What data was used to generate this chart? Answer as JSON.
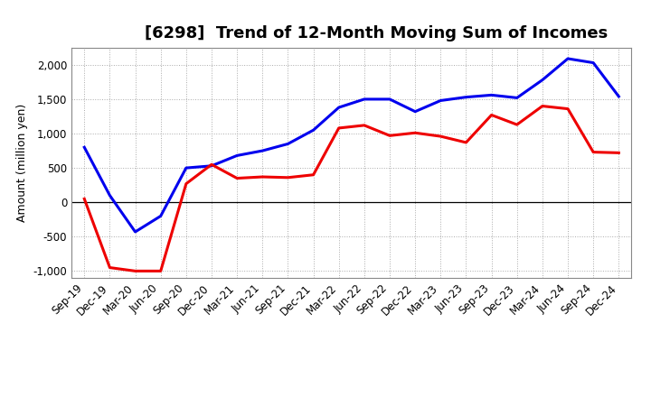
{
  "title": "[6298]  Trend of 12-Month Moving Sum of Incomes",
  "ylabel": "Amount (million yen)",
  "background_color": "#ffffff",
  "plot_background_color": "#ffffff",
  "x_labels": [
    "Sep-19",
    "Dec-19",
    "Mar-20",
    "Jun-20",
    "Sep-20",
    "Dec-20",
    "Mar-21",
    "Jun-21",
    "Sep-21",
    "Dec-21",
    "Mar-22",
    "Jun-22",
    "Sep-22",
    "Dec-22",
    "Mar-23",
    "Jun-23",
    "Sep-23",
    "Dec-23",
    "Mar-24",
    "Jun-24",
    "Sep-24",
    "Dec-24"
  ],
  "ordinary_income": [
    800,
    100,
    -430,
    -200,
    500,
    530,
    680,
    750,
    850,
    1050,
    1380,
    1500,
    1500,
    1320,
    1480,
    1530,
    1560,
    1520,
    1780,
    2090,
    2030,
    1540
  ],
  "net_income": [
    50,
    -950,
    -1000,
    -1000,
    270,
    550,
    350,
    370,
    360,
    400,
    1080,
    1120,
    970,
    1010,
    960,
    870,
    1270,
    1130,
    1400,
    1360,
    730,
    720
  ],
  "ordinary_color": "#0000ee",
  "net_color": "#ee0000",
  "ylim": [
    -1100,
    2250
  ],
  "yticks": [
    -1000,
    -500,
    0,
    500,
    1000,
    1500,
    2000
  ],
  "line_width": 2.2,
  "title_fontsize": 13,
  "legend_fontsize": 10,
  "tick_fontsize": 8.5,
  "ylabel_fontsize": 9
}
